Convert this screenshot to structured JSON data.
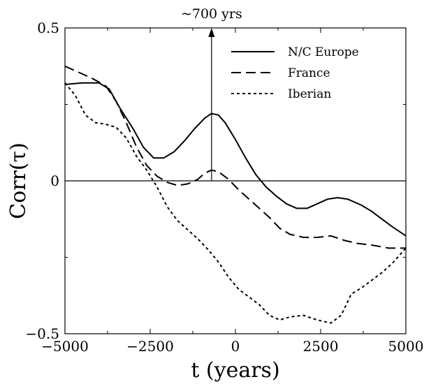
{
  "chart_data": {
    "type": "line",
    "title": "",
    "xlabel": "t (years)",
    "ylabel": "Corr(τ)",
    "xlim": [
      -5000,
      5000
    ],
    "ylim": [
      -0.5,
      0.5
    ],
    "x_ticks": [
      -5000,
      -2500,
      0,
      2500,
      5000
    ],
    "x_tick_labels": [
      "−5000",
      "−2500",
      "0",
      "2500",
      "5000"
    ],
    "y_ticks": [
      -0.5,
      0,
      0.5
    ],
    "y_tick_labels": [
      "−0.5",
      "0",
      "0.5"
    ],
    "grid": false,
    "zero_line": true,
    "legend_position": "top-right",
    "annotation": {
      "text": "~700 yrs",
      "x": -700,
      "y_from": 0,
      "y_to": 0.5
    },
    "series": [
      {
        "name": "N/C Europe",
        "style": "solid",
        "points": [
          [
            -5000,
            0.315
          ],
          [
            -4500,
            0.32
          ],
          [
            -4000,
            0.32
          ],
          [
            -3700,
            0.3
          ],
          [
            -3400,
            0.24
          ],
          [
            -3000,
            0.17
          ],
          [
            -2700,
            0.11
          ],
          [
            -2400,
            0.075
          ],
          [
            -2100,
            0.075
          ],
          [
            -1800,
            0.095
          ],
          [
            -1500,
            0.13
          ],
          [
            -1200,
            0.17
          ],
          [
            -900,
            0.205
          ],
          [
            -700,
            0.22
          ],
          [
            -500,
            0.215
          ],
          [
            -300,
            0.19
          ],
          [
            0,
            0.135
          ],
          [
            300,
            0.075
          ],
          [
            600,
            0.02
          ],
          [
            900,
            -0.02
          ],
          [
            1200,
            -0.05
          ],
          [
            1500,
            -0.075
          ],
          [
            1800,
            -0.09
          ],
          [
            2100,
            -0.09
          ],
          [
            2400,
            -0.075
          ],
          [
            2700,
            -0.06
          ],
          [
            3000,
            -0.055
          ],
          [
            3300,
            -0.06
          ],
          [
            3700,
            -0.08
          ],
          [
            4000,
            -0.1
          ],
          [
            4300,
            -0.125
          ],
          [
            4600,
            -0.15
          ],
          [
            5000,
            -0.18
          ]
        ]
      },
      {
        "name": "France",
        "style": "dashed",
        "points": [
          [
            -5000,
            0.375
          ],
          [
            -4600,
            0.355
          ],
          [
            -4200,
            0.335
          ],
          [
            -3800,
            0.31
          ],
          [
            -3500,
            0.26
          ],
          [
            -3200,
            0.19
          ],
          [
            -2900,
            0.11
          ],
          [
            -2600,
            0.05
          ],
          [
            -2300,
            0.015
          ],
          [
            -2000,
            -0.005
          ],
          [
            -1700,
            -0.015
          ],
          [
            -1400,
            -0.01
          ],
          [
            -1100,
            0.005
          ],
          [
            -900,
            0.025
          ],
          [
            -700,
            0.035
          ],
          [
            -500,
            0.03
          ],
          [
            -200,
            0.005
          ],
          [
            100,
            -0.03
          ],
          [
            400,
            -0.06
          ],
          [
            700,
            -0.09
          ],
          [
            1000,
            -0.12
          ],
          [
            1300,
            -0.155
          ],
          [
            1600,
            -0.175
          ],
          [
            2000,
            -0.185
          ],
          [
            2400,
            -0.185
          ],
          [
            2800,
            -0.18
          ],
          [
            3200,
            -0.195
          ],
          [
            3600,
            -0.205
          ],
          [
            4000,
            -0.21
          ],
          [
            4500,
            -0.22
          ],
          [
            5000,
            -0.22
          ]
        ]
      },
      {
        "name": "Iberian",
        "style": "dotted",
        "points": [
          [
            -5000,
            0.32
          ],
          [
            -4700,
            0.28
          ],
          [
            -4400,
            0.215
          ],
          [
            -4100,
            0.19
          ],
          [
            -3800,
            0.185
          ],
          [
            -3500,
            0.175
          ],
          [
            -3200,
            0.14
          ],
          [
            -2900,
            0.08
          ],
          [
            -2600,
            0.035
          ],
          [
            -2300,
            -0.02
          ],
          [
            -2000,
            -0.085
          ],
          [
            -1700,
            -0.13
          ],
          [
            -1400,
            -0.16
          ],
          [
            -1100,
            -0.19
          ],
          [
            -800,
            -0.225
          ],
          [
            -500,
            -0.265
          ],
          [
            -200,
            -0.315
          ],
          [
            100,
            -0.355
          ],
          [
            400,
            -0.38
          ],
          [
            700,
            -0.405
          ],
          [
            1000,
            -0.44
          ],
          [
            1300,
            -0.455
          ],
          [
            1600,
            -0.445
          ],
          [
            2000,
            -0.44
          ],
          [
            2400,
            -0.455
          ],
          [
            2800,
            -0.465
          ],
          [
            3100,
            -0.44
          ],
          [
            3400,
            -0.37
          ],
          [
            3700,
            -0.35
          ],
          [
            4000,
            -0.325
          ],
          [
            4300,
            -0.3
          ],
          [
            4600,
            -0.27
          ],
          [
            5000,
            -0.22
          ]
        ]
      }
    ]
  }
}
